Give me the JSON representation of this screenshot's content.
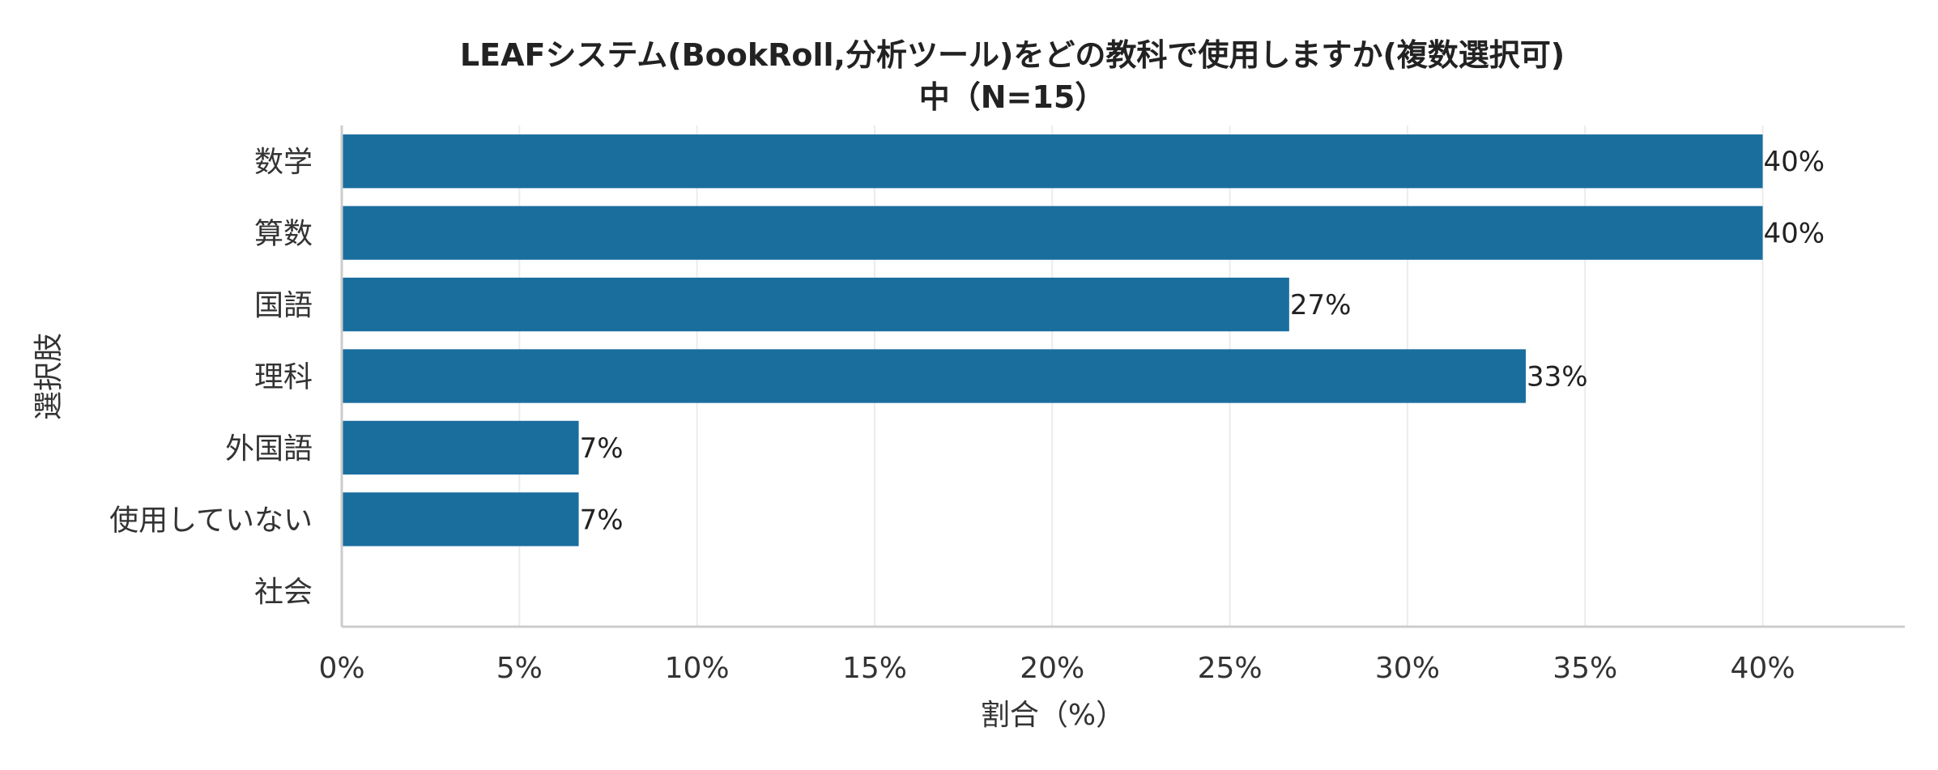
{
  "chart_data": {
    "type": "bar",
    "orientation": "horizontal",
    "title_lines": [
      "LEAFシステム(BookRoll,分析ツール)をどの教科で使用しますか(複数選択可)",
      "中（N=15）"
    ],
    "categories": [
      "数学",
      "算数",
      "国語",
      "理科",
      "外国語",
      "使用していない",
      "社会"
    ],
    "values": [
      40,
      40,
      26.67,
      33.33,
      6.67,
      6.67,
      0
    ],
    "value_labels": [
      "40%",
      "40%",
      "27%",
      "33%",
      "7%",
      "7%",
      ""
    ],
    "xlabel": "割合（%）",
    "ylabel": "選択肢",
    "xlim": [
      0,
      44
    ],
    "xticks": [
      0,
      5,
      10,
      15,
      20,
      25,
      30,
      35,
      40
    ],
    "xtick_labels": [
      "0%",
      "5%",
      "10%",
      "15%",
      "20%",
      "25%",
      "30%",
      "35%",
      "40%"
    ],
    "grid": "vertical",
    "bar_color": "#1a6e9e"
  }
}
